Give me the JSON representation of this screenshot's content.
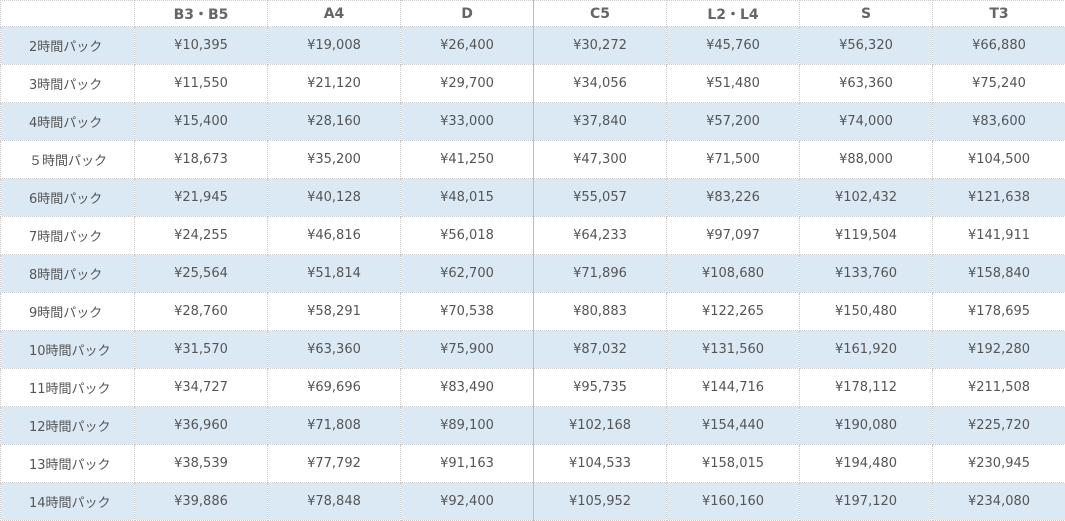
{
  "table": {
    "headers": [
      "",
      "B3・B5",
      "A4",
      "D",
      "C5",
      "L2・L4",
      "S",
      "T3"
    ],
    "rows": [
      {
        "label": "2時間パック",
        "values": [
          "¥10,395",
          "¥19,008",
          "¥26,400",
          "¥30,272",
          "¥45,760",
          "¥56,320",
          "¥66,880"
        ]
      },
      {
        "label": "3時間パック",
        "values": [
          "¥11,550",
          "¥21,120",
          "¥29,700",
          "¥34,056",
          "¥51,480",
          "¥63,360",
          "¥75,240"
        ]
      },
      {
        "label": "4時間パック",
        "values": [
          "¥15,400",
          "¥28,160",
          "¥33,000",
          "¥37,840",
          "¥57,200",
          "¥74,000",
          "¥83,600"
        ]
      },
      {
        "label": "５時間パック",
        "values": [
          "¥18,673",
          "¥35,200",
          "¥41,250",
          "¥47,300",
          "¥71,500",
          "¥88,000",
          "¥104,500"
        ]
      },
      {
        "label": "6時間パック",
        "values": [
          "¥21,945",
          "¥40,128",
          "¥48,015",
          "¥55,057",
          "¥83,226",
          "¥102,432",
          "¥121,638"
        ]
      },
      {
        "label": "7時間パック",
        "values": [
          "¥24,255",
          "¥46,816",
          "¥56,018",
          "¥64,233",
          "¥97,097",
          "¥119,504",
          "¥141,911"
        ]
      },
      {
        "label": "8時間パック",
        "values": [
          "¥25,564",
          "¥51,814",
          "¥62,700",
          "¥71,896",
          "¥108,680",
          "¥133,760",
          "¥158,840"
        ]
      },
      {
        "label": "9時間パック",
        "values": [
          "¥28,760",
          "¥58,291",
          "¥70,538",
          "¥80,883",
          "¥122,265",
          "¥150,480",
          "¥178,695"
        ]
      },
      {
        "label": "10時間パック",
        "values": [
          "¥31,570",
          "¥63,360",
          "¥75,900",
          "¥87,032",
          "¥131,560",
          "¥161,920",
          "¥192,280"
        ]
      },
      {
        "label": "11時間パック",
        "values": [
          "¥34,727",
          "¥69,696",
          "¥83,490",
          "¥95,735",
          "¥144,716",
          "¥178,112",
          "¥211,508"
        ]
      },
      {
        "label": "12時間パック",
        "values": [
          "¥36,960",
          "¥71,808",
          "¥89,100",
          "¥102,168",
          "¥154,440",
          "¥190,080",
          "¥225,720"
        ]
      },
      {
        "label": "13時間パック",
        "values": [
          "¥38,539",
          "¥77,792",
          "¥91,163",
          "¥104,533",
          "¥158,015",
          "¥194,480",
          "¥230,945"
        ]
      },
      {
        "label": "14時間パック",
        "values": [
          "¥39,886",
          "¥78,848",
          "¥92,400",
          "¥105,952",
          "¥160,160",
          "¥197,120",
          "¥234,080"
        ]
      }
    ]
  },
  "colors": {
    "row_band": "#dbe9f5",
    "row_plain": "#ffffff",
    "text": "#555555",
    "border": "#c9c9c9"
  }
}
